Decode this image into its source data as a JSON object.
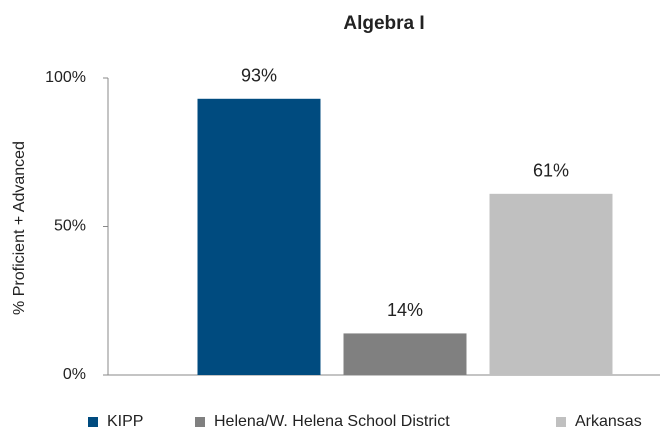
{
  "chart_data": {
    "type": "bar",
    "title": "Algebra I",
    "y_label": "% Proficient + Advanced",
    "categories": [
      null
    ],
    "series": [
      {
        "name": "KIPP",
        "color": "#004b7f",
        "values": [
          93
        ],
        "value_labels": [
          "93%"
        ]
      },
      {
        "name": "Helena/W. Helena School District",
        "color": "#808080",
        "values": [
          14
        ],
        "value_labels": [
          "14%"
        ]
      },
      {
        "name": "Arkansas",
        "color": "#c0c0c0",
        "values": [
          61
        ],
        "value_labels": [
          "61%"
        ]
      }
    ],
    "ylim": [
      0,
      100
    ],
    "yticks": [
      {
        "value": 0,
        "label": "0%"
      },
      {
        "value": 50,
        "label": "50%"
      },
      {
        "value": 100,
        "label": "100%"
      }
    ],
    "grid": false,
    "legend": "bottom"
  }
}
